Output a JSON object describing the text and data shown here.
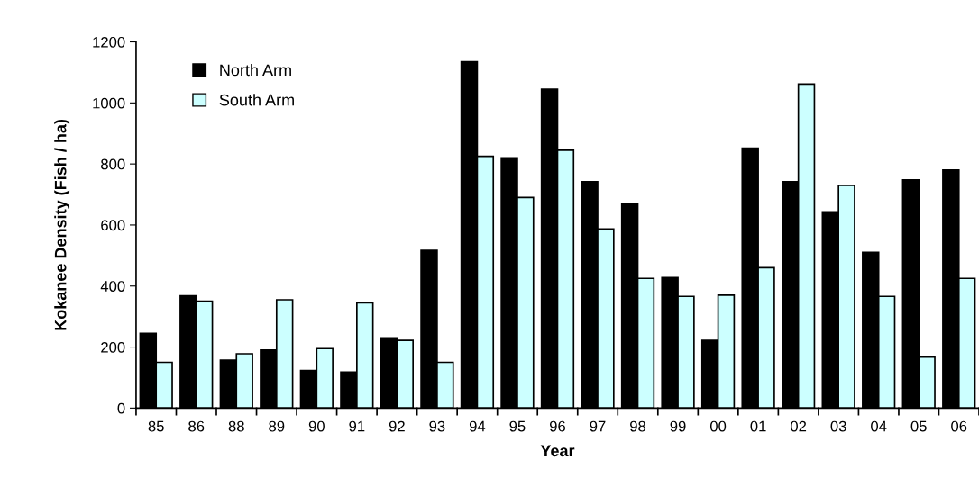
{
  "chart_data": {
    "type": "bar",
    "xlabel": "Year",
    "ylabel": "Kokanee Density (Fish / ha)",
    "categories": [
      "85",
      "86",
      "88",
      "89",
      "90",
      "91",
      "92",
      "93",
      "94",
      "95",
      "96",
      "97",
      "98",
      "99",
      "00",
      "01",
      "02",
      "03",
      "04",
      "05",
      "06"
    ],
    "series": [
      {
        "name": "North Arm",
        "color": "#000000",
        "values": [
          245,
          368,
          157,
          190,
          123,
          118,
          230,
          517,
          1135,
          820,
          1045,
          742,
          670,
          428,
          222,
          852,
          742,
          643,
          510,
          748,
          780
        ]
      },
      {
        "name": "South Arm",
        "color": "#ccffff",
        "values": [
          150,
          350,
          178,
          355,
          195,
          345,
          222,
          150,
          825,
          690,
          845,
          587,
          425,
          366,
          370,
          460,
          1062,
          730,
          366,
          167,
          425
        ]
      }
    ],
    "ylim": [
      0,
      1200
    ],
    "yticks": [
      0,
      200,
      400,
      600,
      800,
      1000,
      1200
    ],
    "grid": false,
    "legend": "top left"
  }
}
